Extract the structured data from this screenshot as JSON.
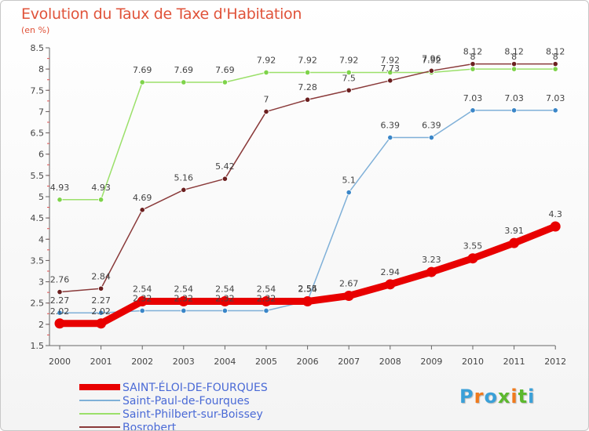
{
  "title": "Evolution du Taux de Taxe d'Habitation",
  "unit_label": "(en %)",
  "logo": {
    "text": "Proxiti",
    "letters": [
      {
        "ch": "P",
        "color": "#3aa0d8"
      },
      {
        "ch": "r",
        "color": "#f07a1c"
      },
      {
        "ch": "o",
        "color": "#3aa0d8"
      },
      {
        "ch": "x",
        "color": "#5cb82e"
      },
      {
        "ch": "i",
        "color": "#f07a1c"
      },
      {
        "ch": "t",
        "color": "#5cb82e"
      },
      {
        "ch": "i",
        "color": "#3aa0d8"
      }
    ]
  },
  "chart_data": {
    "type": "line",
    "title": "Evolution du Taux de Taxe d'Habitation",
    "ylabel": "(en %)",
    "xlabel": "",
    "x": [
      "2000",
      "2001",
      "2002",
      "2003",
      "2004",
      "2005",
      "2006",
      "2007",
      "2008",
      "2009",
      "2010",
      "2011",
      "2012"
    ],
    "ylim": [
      1.5,
      8.5
    ],
    "yticks": [
      "1.5",
      "2",
      "2.5",
      "3",
      "3.5",
      "4",
      "4.5",
      "5",
      "5.5",
      "6",
      "6.5",
      "7",
      "7.5",
      "8",
      "8.5"
    ],
    "grid": false,
    "legend_position": "bottom-left",
    "series": [
      {
        "name": "SAINT-ÉLOI-DE-FOURQUES",
        "color": "#e80000",
        "marker_color": "#e80000",
        "emphasis": true,
        "values": [
          2.02,
          2.02,
          2.54,
          2.54,
          2.54,
          2.54,
          2.54,
          2.67,
          2.94,
          3.23,
          3.55,
          3.91,
          4.3
        ],
        "labels": [
          "2.02",
          "2.02",
          "2.54",
          "2.54",
          "2.54",
          "2.54",
          "2.54",
          "2.67",
          "2.94",
          "3.23",
          "3.55",
          "3.91",
          "4.3"
        ]
      },
      {
        "name": "Saint-Paul-de-Fourques",
        "color": "#7fb0d8",
        "marker_color": "#3a86c8",
        "emphasis": false,
        "values": [
          2.27,
          2.27,
          2.32,
          2.32,
          2.32,
          2.32,
          2.55,
          5.1,
          6.39,
          6.39,
          7.03,
          7.03,
          7.03
        ],
        "labels": [
          "2.27",
          "2.27",
          "2.32",
          "2.32",
          "2.32",
          "2.32",
          "2.55",
          "5.1",
          "6.39",
          "6.39",
          "7.03",
          "7.03",
          "7.03"
        ]
      },
      {
        "name": "Saint-Philbert-sur-Boissey",
        "color": "#9be06a",
        "marker_color": "#7ed34a",
        "emphasis": false,
        "values": [
          4.93,
          4.93,
          7.69,
          7.69,
          7.69,
          7.92,
          7.92,
          7.92,
          7.92,
          7.92,
          8,
          8,
          8
        ],
        "labels": [
          "4.93",
          "4.93",
          "7.69",
          "7.69",
          "7.69",
          "7.92",
          "7.92",
          "7.92",
          "7.92",
          "7.92",
          "8",
          "8",
          "8"
        ]
      },
      {
        "name": "Bosrobert",
        "color": "#8a3a3a",
        "marker_color": "#6b1f1f",
        "emphasis": false,
        "values": [
          2.76,
          2.84,
          4.69,
          5.16,
          5.42,
          7,
          7.28,
          7.5,
          7.73,
          7.96,
          8.12,
          8.12,
          8.12
        ],
        "labels": [
          "2.76",
          "2.84",
          "4.69",
          "5.16",
          "5.42",
          "7",
          "7.28",
          "7.5",
          "7.73",
          "7.96",
          "8.12",
          "8.12",
          "8.12"
        ]
      }
    ]
  }
}
